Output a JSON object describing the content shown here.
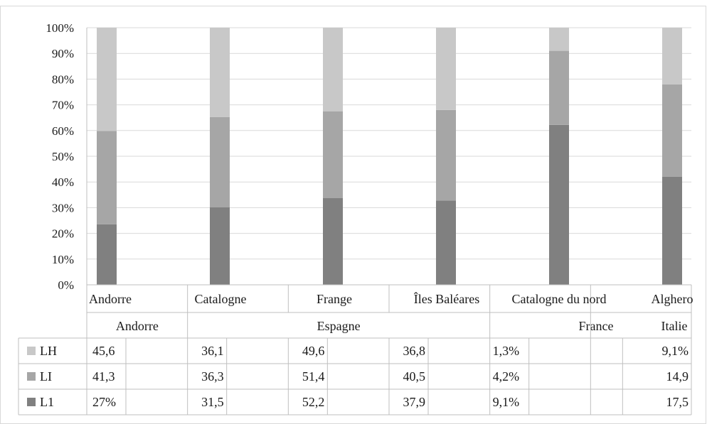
{
  "chart_data": {
    "type": "bar",
    "stacked": "percent",
    "categories": [
      "Andorre",
      "Catalogne",
      "Frange",
      "Îles Baléares",
      "Catalogne du nord",
      "Alghero"
    ],
    "groups": [
      {
        "label": "Andorre",
        "categories": [
          "Andorre"
        ]
      },
      {
        "label": "Espagne",
        "categories": [
          "Catalogne",
          "Frange",
          "Îles Baléares"
        ]
      },
      {
        "label": "France",
        "categories": [
          "Catalogne du nord"
        ]
      },
      {
        "label": "Italie",
        "categories": [
          "Alghero"
        ]
      }
    ],
    "series": [
      {
        "name": "L1",
        "color": "#808080",
        "values": [
          23.5,
          30.2,
          33.7,
          32.8,
          62.2,
          42.0
        ],
        "table_values": [
          "27%",
          "31,5",
          "52,2",
          "37,9",
          "9,1%",
          "17,5"
        ]
      },
      {
        "name": "LI",
        "color": "#a6a6a6",
        "values": [
          36.3,
          35.0,
          33.8,
          35.2,
          28.8,
          35.9
        ],
        "table_values": [
          "41,3",
          "36,3",
          "51,4",
          "40,5",
          "4,2%",
          "14,9"
        ]
      },
      {
        "name": "LH",
        "color": "#c8c8c8",
        "values": [
          40.2,
          34.8,
          32.5,
          32.0,
          9.0,
          22.1
        ],
        "table_values": [
          "45,6",
          "36,1",
          "49,6",
          "36,8",
          "1,3%",
          "9,1%"
        ]
      }
    ],
    "ylim": [
      0,
      100
    ],
    "yticks": [
      0,
      10,
      20,
      30,
      40,
      50,
      60,
      70,
      80,
      90,
      100
    ],
    "ytick_labels": [
      "0%",
      "10%",
      "20%",
      "30%",
      "40%",
      "50%",
      "60%",
      "70%",
      "80%",
      "90%",
      "100%"
    ],
    "grid": true,
    "legend": "data-table",
    "title": "",
    "xlabel": "",
    "ylabel": ""
  }
}
